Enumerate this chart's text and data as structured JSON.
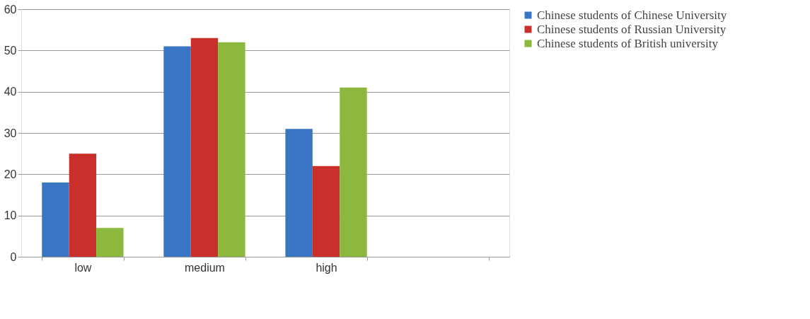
{
  "chart_data": {
    "type": "bar",
    "categories": [
      "low",
      "medium",
      "high",
      null
    ],
    "series": [
      {
        "name": "Chinese students of Chinese University",
        "color": "#3a75c4",
        "values": [
          18,
          51,
          31,
          null
        ]
      },
      {
        "name": "Chinese students of Russian University",
        "color": "#c9302c",
        "values": [
          25,
          53,
          22,
          null
        ]
      },
      {
        "name": "Chinese students of British university",
        "color": "#8cb83e",
        "values": [
          7,
          52,
          41,
          null
        ]
      }
    ],
    "ylim": [
      0,
      60
    ],
    "yticks": [
      0,
      10,
      20,
      30,
      40,
      50,
      60
    ],
    "grid": "y",
    "legend": "right"
  }
}
